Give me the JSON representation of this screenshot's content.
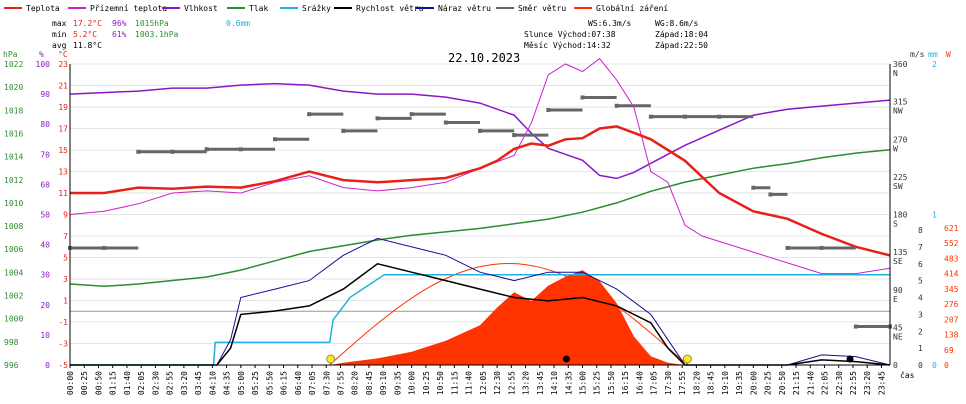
{
  "colors": {
    "teplota": "#e8201a",
    "prizemni": "#cc22cc",
    "vlhkost": "#8a18c8",
    "tlak": "#2e8b2e",
    "srazky": "#22b0e0",
    "rychlost": "#000000",
    "naraz": "#101090",
    "smer": "#666666",
    "zareni": "#ff3300"
  },
  "legend": [
    {
      "key": "teplota",
      "label": "Teplota"
    },
    {
      "key": "prizemni",
      "label": "Přízemní teplota"
    },
    {
      "key": "vlhkost",
      "label": "Vlhkost"
    },
    {
      "key": "tlak",
      "label": "Tlak"
    },
    {
      "key": "srazky",
      "label": "Srážky"
    },
    {
      "key": "rychlost",
      "label": "Rychlost větru"
    },
    {
      "key": "naraz",
      "label": "Náraz větru"
    },
    {
      "key": "smer",
      "label": "Směr větru"
    },
    {
      "key": "zareni",
      "label": "Globální záření"
    }
  ],
  "stats": {
    "max_label": "max",
    "max_temp": "17.2°C",
    "max_hum": "96%",
    "max_press": "1015hPa",
    "rain": "0.6mm",
    "min_label": "min",
    "min_temp": "5.2°C",
    "min_hum": "61%",
    "min_press": "1003.1hPa",
    "avg_label": "avg",
    "avg_temp": "11.8°C"
  },
  "astro": {
    "ws": "WS:6.3m/s",
    "wg": "WG:8.6m/s",
    "sun_line": "Slunce Východ:07:38",
    "sun_set": "Západ:18:04",
    "moon_line": "Měsíc  Východ:14:32",
    "moon_set": "Západ:22:50"
  },
  "date": "22.10.2023",
  "axes": {
    "hpa_title": "hPa",
    "pct_title": "%",
    "degc_title": "°C",
    "ms_title": "m/s",
    "mm_title": "mm",
    "w_title": "W",
    "x_title": "čas",
    "hpa_ticks": [
      "1022",
      "1020",
      "1018",
      "1016",
      "1014",
      "1012",
      "1010",
      "1008",
      "1006",
      "1004",
      "1002",
      "1000",
      "998",
      "996"
    ],
    "pct_ticks": [
      "100",
      "90",
      "80",
      "70",
      "60",
      "50",
      "40",
      "30",
      "20",
      "10",
      "0"
    ],
    "degc_ticks": [
      "23",
      "21",
      "19",
      "17",
      "15",
      "13",
      "11",
      "9",
      "7",
      "5",
      "3",
      "1",
      "-1",
      "-3",
      "-5"
    ],
    "dir_ticks": [
      {
        "deg": "360",
        "c": "N"
      },
      {
        "deg": "315",
        "c": "NW"
      },
      {
        "deg": "270",
        "c": "W"
      },
      {
        "deg": "225",
        "c": "SW"
      },
      {
        "deg": "180",
        "c": "S"
      },
      {
        "deg": "135",
        "c": "SE"
      },
      {
        "deg": "90",
        "c": "E"
      },
      {
        "deg": "45",
        "c": "NE"
      },
      {
        "deg": "0",
        "c": ""
      }
    ],
    "ms_ticks": [
      "8",
      "7",
      "6",
      "5",
      "4",
      "3",
      "2",
      "1",
      "0"
    ],
    "mm_ticks": [
      "2",
      "1",
      "0"
    ],
    "w_ticks": [
      "621",
      "552",
      "483",
      "414",
      "345",
      "276",
      "207",
      "138",
      "69",
      "0"
    ],
    "x_ticks": [
      "00:00",
      "00:25",
      "00:50",
      "01:15",
      "01:40",
      "02:05",
      "02:30",
      "02:55",
      "03:20",
      "03:45",
      "04:10",
      "04:35",
      "05:00",
      "05:25",
      "05:50",
      "06:15",
      "06:40",
      "07:05",
      "07:30",
      "07:55",
      "08:20",
      "08:45",
      "09:10",
      "09:35",
      "10:00",
      "10:25",
      "10:50",
      "11:15",
      "11:40",
      "12:05",
      "12:30",
      "12:55",
      "13:20",
      "13:45",
      "14:10",
      "14:35",
      "15:00",
      "15:25",
      "15:50",
      "16:15",
      "16:40",
      "17:05",
      "17:30",
      "17:55",
      "18:20",
      "18:45",
      "19:10",
      "19:35",
      "20:00",
      "20:25",
      "20:50",
      "21:15",
      "21:40",
      "22:05",
      "22:30",
      "22:55",
      "23:20",
      "23:45"
    ]
  },
  "chart_data": {
    "type": "line",
    "title": "22.10.2023",
    "x_unit": "hours",
    "xlim": [
      0,
      24
    ],
    "series": [
      {
        "name": "Teplota",
        "unit": "°C",
        "points": [
          [
            0,
            11
          ],
          [
            1,
            11
          ],
          [
            2,
            11.5
          ],
          [
            3,
            11.4
          ],
          [
            4,
            11.6
          ],
          [
            5,
            11.5
          ],
          [
            6,
            12.1
          ],
          [
            7,
            13
          ],
          [
            7.5,
            12.6
          ],
          [
            8,
            12.2
          ],
          [
            9,
            12
          ],
          [
            10,
            12.2
          ],
          [
            11,
            12.4
          ],
          [
            12,
            13.3
          ],
          [
            12.5,
            14
          ],
          [
            13,
            15.1
          ],
          [
            13.5,
            15.6
          ],
          [
            14,
            15.4
          ],
          [
            14.5,
            16
          ],
          [
            15,
            16.1
          ],
          [
            15.5,
            17
          ],
          [
            16,
            17.2
          ],
          [
            16.5,
            16.6
          ],
          [
            17,
            16
          ],
          [
            18,
            14
          ],
          [
            19,
            11
          ],
          [
            20,
            9.3
          ],
          [
            21,
            8.6
          ],
          [
            22,
            7.2
          ],
          [
            23,
            6
          ],
          [
            24,
            5.2
          ]
        ]
      },
      {
        "name": "Přízemní teplota",
        "unit": "°C",
        "points": [
          [
            0,
            9
          ],
          [
            1,
            9.3
          ],
          [
            2,
            10
          ],
          [
            3,
            11
          ],
          [
            4,
            11.2
          ],
          [
            5,
            11
          ],
          [
            6,
            12
          ],
          [
            7,
            12.6
          ],
          [
            8,
            11.5
          ],
          [
            9,
            11.2
          ],
          [
            10,
            11.5
          ],
          [
            11,
            12
          ],
          [
            12,
            13.3
          ],
          [
            13,
            14.5
          ],
          [
            13.5,
            17.5
          ],
          [
            14,
            22
          ],
          [
            14.5,
            23
          ],
          [
            15,
            22.3
          ],
          [
            15.5,
            23.5
          ],
          [
            16,
            21.5
          ],
          [
            16.5,
            19
          ],
          [
            17,
            13
          ],
          [
            17.5,
            12
          ],
          [
            18,
            8
          ],
          [
            18.5,
            7
          ],
          [
            19,
            6.5
          ],
          [
            20,
            5.5
          ],
          [
            21,
            4.5
          ],
          [
            22,
            3.5
          ],
          [
            23,
            3.5
          ],
          [
            24,
            4
          ]
        ]
      },
      {
        "name": "Vlhkost",
        "unit": "%",
        "points": [
          [
            0,
            90
          ],
          [
            2,
            91
          ],
          [
            3,
            92
          ],
          [
            4,
            92
          ],
          [
            5,
            93
          ],
          [
            6,
            93.5
          ],
          [
            7,
            93
          ],
          [
            8,
            91
          ],
          [
            9,
            90
          ],
          [
            10,
            90
          ],
          [
            11,
            89
          ],
          [
            12,
            87
          ],
          [
            12.5,
            85
          ],
          [
            13,
            83
          ],
          [
            13.5,
            77
          ],
          [
            14,
            72
          ],
          [
            14.5,
            70
          ],
          [
            15,
            68
          ],
          [
            15.5,
            63
          ],
          [
            16,
            62
          ],
          [
            16.5,
            64
          ],
          [
            17,
            67
          ],
          [
            18,
            73
          ],
          [
            19,
            78
          ],
          [
            20,
            83
          ],
          [
            21,
            85
          ],
          [
            22,
            86
          ],
          [
            23,
            87
          ],
          [
            24,
            88
          ]
        ]
      },
      {
        "name": "Tlak",
        "unit": "hPa",
        "points": [
          [
            0,
            1003
          ],
          [
            1,
            1002.8
          ],
          [
            2,
            1003
          ],
          [
            3,
            1003.3
          ],
          [
            4,
            1003.6
          ],
          [
            5,
            1004.2
          ],
          [
            6,
            1005
          ],
          [
            7,
            1005.8
          ],
          [
            8,
            1006.3
          ],
          [
            9,
            1006.8
          ],
          [
            10,
            1007.2
          ],
          [
            11,
            1007.5
          ],
          [
            12,
            1007.8
          ],
          [
            13,
            1008.2
          ],
          [
            14,
            1008.6
          ],
          [
            15,
            1009.2
          ],
          [
            16,
            1010
          ],
          [
            17,
            1011
          ],
          [
            18,
            1011.8
          ],
          [
            19,
            1012.4
          ],
          [
            20,
            1013
          ],
          [
            21,
            1013.4
          ],
          [
            22,
            1013.9
          ],
          [
            23,
            1014.3
          ],
          [
            24,
            1014.6
          ]
        ]
      },
      {
        "name": "Srážky",
        "unit": "mm",
        "points": [
          [
            0,
            0
          ],
          [
            4.2,
            0
          ],
          [
            4.25,
            0.15
          ],
          [
            7.6,
            0.15
          ],
          [
            7.7,
            0.3
          ],
          [
            8.2,
            0.45
          ],
          [
            9.2,
            0.6
          ],
          [
            24,
            0.6
          ]
        ]
      },
      {
        "name": "Rychlost větru",
        "unit": "m/s",
        "points": [
          [
            0,
            0
          ],
          [
            4.3,
            0
          ],
          [
            4.7,
            1
          ],
          [
            5,
            3
          ],
          [
            6,
            3.2
          ],
          [
            7,
            3.5
          ],
          [
            8,
            4.5
          ],
          [
            9,
            6
          ],
          [
            10,
            5.5
          ],
          [
            11,
            5
          ],
          [
            12,
            4.5
          ],
          [
            13,
            4
          ],
          [
            14,
            3.8
          ],
          [
            15,
            4
          ],
          [
            16,
            3.5
          ],
          [
            17,
            2.5
          ],
          [
            17.5,
            1
          ],
          [
            18,
            0
          ],
          [
            21,
            0
          ],
          [
            22,
            0.3
          ],
          [
            23,
            0.2
          ],
          [
            24,
            0
          ]
        ]
      },
      {
        "name": "Náraz větru",
        "unit": "m/s",
        "points": [
          [
            0,
            0
          ],
          [
            4.3,
            0
          ],
          [
            4.7,
            1.5
          ],
          [
            5,
            4
          ],
          [
            6,
            4.5
          ],
          [
            7,
            5
          ],
          [
            8,
            6.5
          ],
          [
            9,
            7.5
          ],
          [
            10,
            7
          ],
          [
            11,
            6.5
          ],
          [
            12,
            5.5
          ],
          [
            13,
            5
          ],
          [
            14,
            5.5
          ],
          [
            15,
            5.5
          ],
          [
            16,
            4.5
          ],
          [
            17,
            3
          ],
          [
            17.5,
            1.5
          ],
          [
            18,
            0
          ],
          [
            21,
            0
          ],
          [
            22,
            0.6
          ],
          [
            23,
            0.5
          ],
          [
            24,
            0
          ]
        ]
      },
      {
        "name": "Směr větru",
        "unit": "°",
        "points": [
          [
            0,
            140
          ],
          [
            1,
            140
          ],
          [
            2,
            255
          ],
          [
            3,
            255
          ],
          [
            4,
            258
          ],
          [
            5,
            258
          ],
          [
            6,
            270
          ],
          [
            7,
            300
          ],
          [
            8,
            280
          ],
          [
            9,
            295
          ],
          [
            10,
            300
          ],
          [
            11,
            290
          ],
          [
            12,
            280
          ],
          [
            13,
            275
          ],
          [
            14,
            305
          ],
          [
            15,
            320
          ],
          [
            16,
            310
          ],
          [
            17,
            297
          ],
          [
            18,
            297
          ],
          [
            19,
            297
          ],
          [
            20,
            212
          ],
          [
            20.5,
            204
          ],
          [
            21,
            140
          ],
          [
            22,
            140
          ],
          [
            23,
            46
          ],
          [
            24,
            46
          ]
        ]
      },
      {
        "name": "Globální záření",
        "unit": "W",
        "points": [
          [
            0,
            0
          ],
          [
            7.6,
            0
          ],
          [
            8,
            10
          ],
          [
            9,
            30
          ],
          [
            10,
            60
          ],
          [
            11,
            110
          ],
          [
            12,
            180
          ],
          [
            12.5,
            260
          ],
          [
            13,
            330
          ],
          [
            13.5,
            290
          ],
          [
            14,
            360
          ],
          [
            14.5,
            400
          ],
          [
            15,
            430
          ],
          [
            15.5,
            380
          ],
          [
            16,
            280
          ],
          [
            16.5,
            130
          ],
          [
            17,
            40
          ],
          [
            17.5,
            10
          ],
          [
            18,
            0
          ],
          [
            24,
            0
          ]
        ]
      }
    ]
  }
}
